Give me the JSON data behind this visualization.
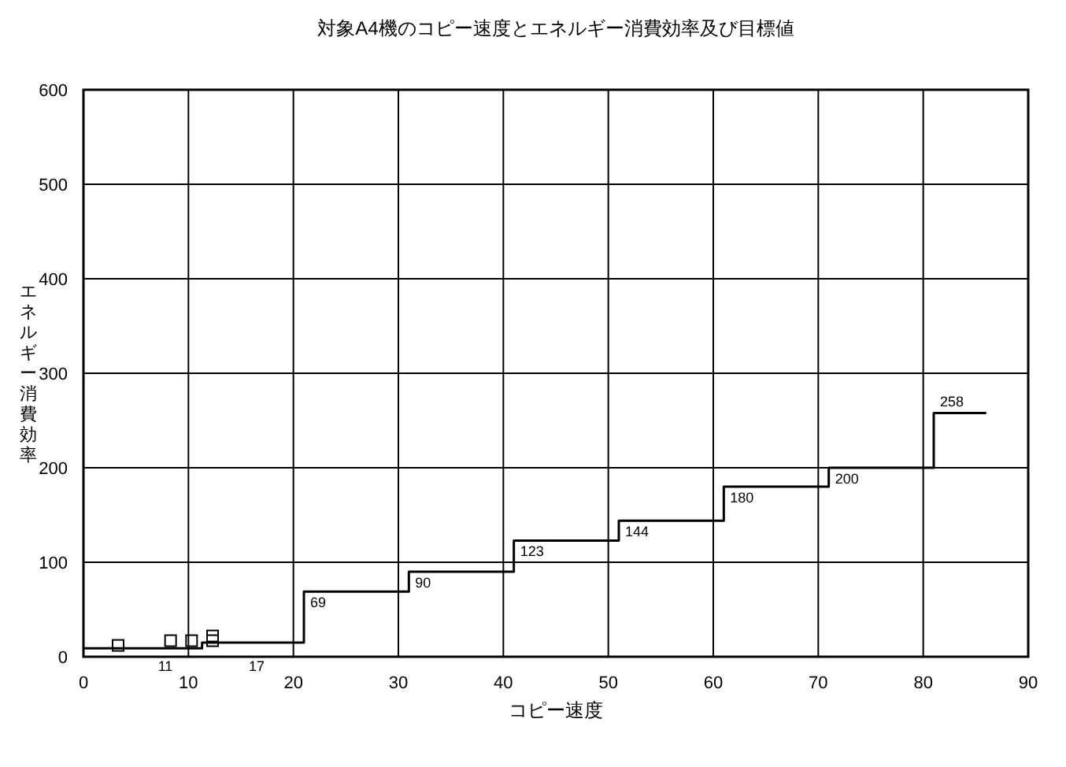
{
  "chart_data": {
    "type": "step",
    "title": "対象A4機のコピー速度とエネルギー消費効率及び目標値",
    "xlabel": "コピー速度",
    "ylabel": "エネルギー消費効率",
    "xlim": [
      0,
      90
    ],
    "xticks": [
      0,
      10,
      20,
      30,
      40,
      50,
      60,
      70,
      80,
      90
    ],
    "ylim": [
      0,
      600
    ],
    "yticks": [
      0,
      100,
      200,
      300,
      400,
      500,
      600
    ],
    "grid": true,
    "series": [
      {
        "color": "#000000",
        "x": [
          0,
          11.3,
          21,
          31,
          41,
          51,
          61,
          71,
          81,
          86
        ],
        "values": [
          9,
          15,
          69,
          90,
          123,
          144,
          180,
          200,
          258,
          258
        ],
        "value_labels": [
          null,
          null,
          "69",
          "90",
          "123",
          "144",
          "180",
          "200",
          "258",
          null
        ]
      },
      {
        "type": "scatter",
        "color": "#000000",
        "marker": "square",
        "x": [
          3.3,
          8.3,
          10.3,
          12.3,
          12.3
        ],
        "values": [
          12,
          17,
          17,
          17,
          22
        ]
      }
    ],
    "annotations": [
      "11",
      "17"
    ]
  }
}
